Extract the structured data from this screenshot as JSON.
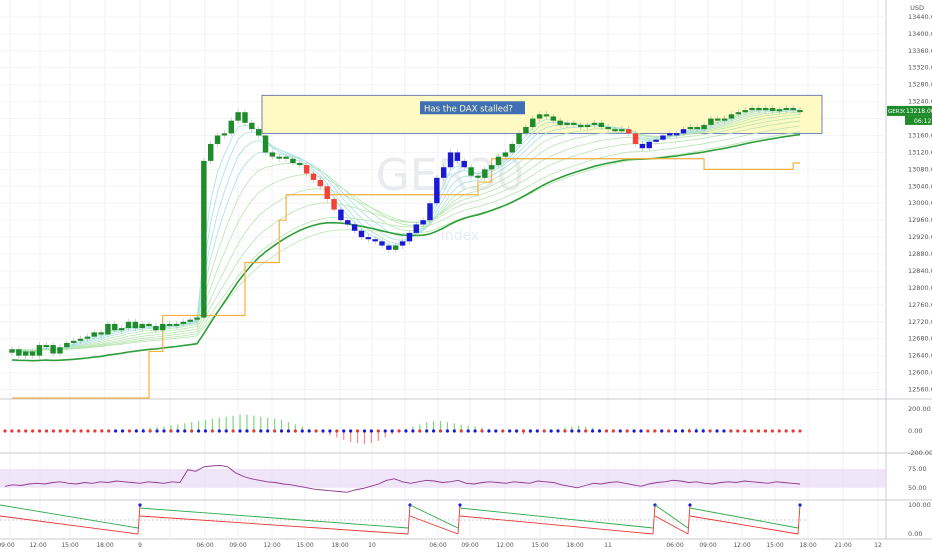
{
  "header": {
    "currency": "USD"
  },
  "annotation": {
    "text": "Has the DAX stalled?"
  },
  "watermark": {
    "symbol": "GER30",
    "description": "Index"
  },
  "price_badge": {
    "symbol": "GER30",
    "price": "13218.00",
    "countdown": "06:12"
  },
  "colors": {
    "up_candle": "#1e8c2a",
    "down_candle": "#f44336",
    "blue_candle": "#1a1ad6",
    "support_line": "#f5b041",
    "ema_main": "#2e9e3a",
    "zone_fill": "#fff9c4",
    "zone_border": "#3a4fa0",
    "label_bg": "#3f6fb5",
    "rsi_band": "#e8d8f5"
  },
  "chart_data": [
    {
      "type": "candlestick",
      "y_axis_ticks": [
        "13440.00",
        "13400.00",
        "13360.00",
        "13320.00",
        "13280.00",
        "13240.00",
        "13200.00",
        "13160.00",
        "13120.00",
        "13080.00",
        "13040.00",
        "13000.00",
        "12960.00",
        "12920.00",
        "12880.00",
        "12840.00",
        "12800.00",
        "12760.00",
        "12720.00",
        "12680.00",
        "12640.00",
        "12600.00",
        "12560.00"
      ],
      "ylim": [
        12540,
        13480
      ],
      "x_axis_ticks": [
        "09:00",
        "12:00",
        "15:00",
        "18:00",
        "9",
        "06:00",
        "09:00",
        "12:00",
        "15:00",
        "18:00",
        "10",
        "06:00",
        "09:00",
        "12:00",
        "15:00",
        "18:00",
        "11",
        "06:00",
        "09:00",
        "12:00",
        "15:00",
        "18:00",
        "21:00",
        "12"
      ],
      "close": [
        12655,
        12640,
        12650,
        12640,
        12665,
        12665,
        12645,
        12660,
        12670,
        12675,
        12680,
        12685,
        12695,
        12690,
        12715,
        12700,
        12705,
        12720,
        12705,
        12715,
        12710,
        12700,
        12715,
        12715,
        12715,
        12720,
        12725,
        12730,
        13100,
        13140,
        13160,
        13165,
        13195,
        13215,
        13190,
        13175,
        13160,
        13120,
        13110,
        13110,
        13105,
        13095,
        13090,
        13070,
        13055,
        13040,
        13010,
        12985,
        12960,
        12950,
        12935,
        12920,
        12915,
        12910,
        12900,
        12890,
        12900,
        12910,
        12930,
        12950,
        12960,
        13000,
        13060,
        13085,
        13120,
        13100,
        13085,
        13065,
        13060,
        13080,
        13090,
        13110,
        13120,
        13140,
        13165,
        13180,
        13200,
        13210,
        13205,
        13195,
        13185,
        13190,
        13185,
        13180,
        13185,
        13190,
        13180,
        13175,
        13170,
        13175,
        13165,
        13140,
        13130,
        13145,
        13150,
        13160,
        13165,
        13165,
        13175,
        13180,
        13175,
        13185,
        13200,
        13195,
        13200,
        13210,
        13215,
        13220,
        13225,
        13220,
        13225,
        13218,
        13222,
        13225,
        13220,
        13218
      ],
      "down_highlight_ranges": [
        [
          43,
          47
        ],
        [
          90,
          91
        ]
      ],
      "blue_ranges": [
        [
          48,
          55
        ],
        [
          57,
          66
        ],
        [
          92,
          98
        ]
      ],
      "support_steps": [
        [
          0,
          12540
        ],
        [
          20,
          12650
        ],
        [
          22,
          12735
        ],
        [
          28,
          12735
        ],
        [
          34,
          12860
        ],
        [
          38,
          12860
        ],
        [
          39,
          12960
        ],
        [
          40,
          13020
        ],
        [
          63,
          13020
        ],
        [
          68,
          13050
        ],
        [
          70,
          13105
        ],
        [
          91,
          13105
        ],
        [
          101,
          13080
        ],
        [
          110,
          13080
        ],
        [
          114,
          13095
        ]
      ],
      "annotation_zone": {
        "top": 13255,
        "bottom": 13165
      }
    },
    {
      "type": "bar",
      "name": "momentum-histogram",
      "y_axis_ticks": [
        "200.00",
        "0.00",
        "-200.00"
      ],
      "values": [
        0,
        0,
        0,
        0,
        0,
        0,
        0,
        0,
        0,
        0,
        0,
        0,
        0,
        0,
        0,
        0,
        5,
        10,
        15,
        20,
        25,
        30,
        35,
        40,
        50,
        60,
        70,
        80,
        90,
        100,
        110,
        120,
        130,
        140,
        150,
        150,
        140,
        130,
        120,
        110,
        100,
        80,
        60,
        40,
        20,
        0,
        -20,
        -40,
        -60,
        -80,
        -100,
        -110,
        -120,
        -110,
        -90,
        -60,
        -30,
        0,
        20,
        40,
        60,
        80,
        90,
        90,
        80,
        70,
        60,
        50,
        40,
        30,
        20,
        10,
        0,
        -10,
        -20,
        -30,
        -20,
        -10,
        0,
        10,
        20,
        30,
        40,
        50,
        40,
        30,
        20,
        10,
        0,
        -5,
        -10,
        -15,
        -10,
        -5,
        0,
        5,
        10,
        15,
        20,
        25,
        30,
        25,
        20,
        15,
        10,
        5,
        0,
        0,
        0,
        0,
        0,
        0,
        0,
        0,
        0,
        0
      ]
    },
    {
      "type": "line",
      "name": "rsi",
      "y_axis_ticks": [
        "75.00",
        "50.00"
      ],
      "values": [
        52,
        54,
        53,
        55,
        56,
        55,
        57,
        58,
        56,
        55,
        57,
        56,
        58,
        57,
        59,
        58,
        57,
        56,
        58,
        57,
        56,
        58,
        57,
        74,
        72,
        78,
        79,
        80,
        78,
        70,
        65,
        62,
        60,
        58,
        57,
        55,
        54,
        52,
        50,
        48,
        47,
        46,
        45,
        44,
        47,
        49,
        52,
        55,
        60,
        62,
        58,
        56,
        58,
        60,
        59,
        57,
        58,
        60,
        56,
        55,
        57,
        58,
        57,
        56,
        58,
        57,
        56,
        59,
        58,
        57,
        54,
        52,
        50,
        53,
        56,
        55,
        57,
        58,
        56,
        54,
        52,
        55,
        57,
        58,
        60,
        59,
        57,
        58,
        56,
        55,
        57,
        58,
        57,
        59,
        58,
        57,
        56,
        58,
        57,
        56,
        55
      ],
      "band": [
        50,
        75
      ]
    },
    {
      "type": "line",
      "name": "oscillator",
      "y_axis_ticks": [
        "100.00",
        "0.00"
      ]
    }
  ]
}
